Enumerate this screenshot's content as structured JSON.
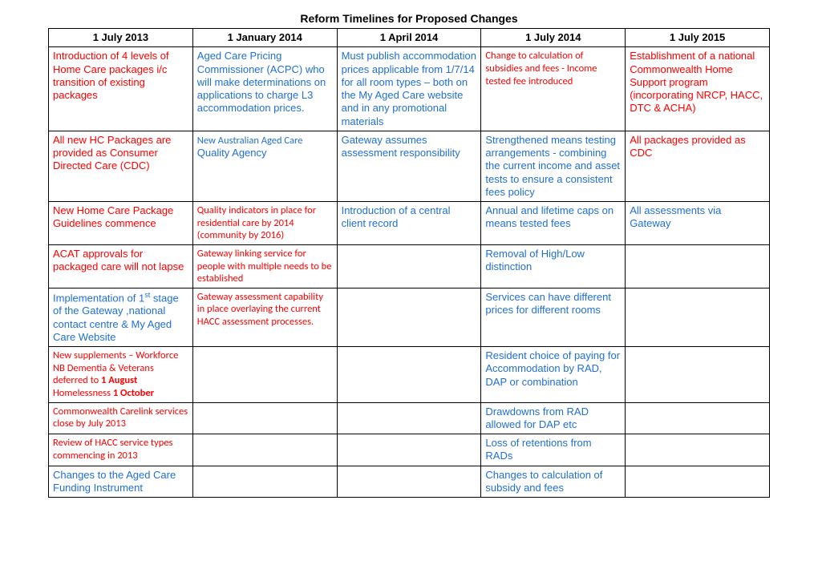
{
  "title": "Reform Timelines for Proposed Changes",
  "headers": [
    "1 July 2013",
    "1 January 2014",
    "1 April 2014",
    "1 July 2014",
    "1 July 2015"
  ],
  "rows": [
    {
      "c0": {
        "style": "c-red",
        "text": "Introduction of 4 levels of Home Care packages i/c transition of existing packages"
      },
      "c1": {
        "style": "c-blue",
        "text": "Aged Care Pricing Commissioner (ACPC) who will make determinations on applications to charge L3 accommodation prices."
      },
      "c2": {
        "style": "c-blue",
        "text": "Must publish accommodation prices applicable from 1/7/14 for all room types – both on the My Aged Care website and in any promotional materials"
      },
      "c3": {
        "style": "c-redcalibri",
        "text": "Change to calculation of subsidies and fees - Income tested fee introduced"
      },
      "c4": {
        "style": "c-red",
        "text": "Establishment of  a national Commonwealth Home Support program (incorporating NRCP, HACC, DTC & ACHA)"
      }
    },
    {
      "c0": {
        "style": "c-red",
        "text": "All new HC Packages are provided as Consumer Directed Care (CDC)"
      },
      "c1": {
        "style": "",
        "html": "<span class='c-bluecalibri'>New Australian Aged Care</span><br><span class='c-blue'>Quality Agency</span>"
      },
      "c2": {
        "style": "c-blue",
        "text": "Gateway assumes assessment responsibility"
      },
      "c3": {
        "style": "c-blue",
        "text": "Strengthened means testing arrangements - combining the current income and asset tests to ensure a consistent fees policy"
      },
      "c4": {
        "style": "c-red",
        "text": "All packages provided as CDC"
      }
    },
    {
      "c0": {
        "style": "c-red",
        "text": "New Home Care Package Guidelines commence"
      },
      "c1": {
        "style": "c-redcalibri",
        "text": "Quality indicators in place for residential care by 2014 (community by 2016)"
      },
      "c2": {
        "style": "c-blue",
        "text": "Introduction of a central client record"
      },
      "c3": {
        "style": "c-blue",
        "text": "Annual and lifetime caps on means tested fees"
      },
      "c4": {
        "style": "c-blue",
        "text": "All assessments via Gateway"
      }
    },
    {
      "c0": {
        "style": "c-red",
        "text": "ACAT approvals for packaged care will not lapse"
      },
      "c1": {
        "style": "c-redcalibri",
        "text": "Gateway linking service for people with multiple needs to be established"
      },
      "c2": {
        "style": "",
        "text": ""
      },
      "c3": {
        "style": "c-blue",
        "text": "Removal of High/Low distinction"
      },
      "c4": {
        "style": "",
        "text": ""
      }
    },
    {
      "c0": {
        "style": "c-blue",
        "html": "Implementation of 1<sup>st</sup> stage of the Gateway ,national contact centre & My Aged Care Website"
      },
      "c1": {
        "style": "c-redcalibri",
        "text": "Gateway assessment capability in place overlaying the current HACC assessment processes."
      },
      "c2": {
        "style": "",
        "text": ""
      },
      "c3": {
        "style": "c-blue",
        "text": "Services can have different prices for different rooms"
      },
      "c4": {
        "style": "",
        "text": ""
      }
    },
    {
      "c0": {
        "style": "c-redcalibri",
        "html": "New supplements – Workforce<br>NB Dementia & Veterans deferred to <b>1 August</b><br>Homelessness <b>1 October</b>"
      },
      "c1": {
        "style": "",
        "text": ""
      },
      "c2": {
        "style": "",
        "text": ""
      },
      "c3": {
        "style": "c-blue",
        "text": "Resident choice of paying for Accommodation by RAD, DAP or combination"
      },
      "c4": {
        "style": "",
        "text": ""
      }
    },
    {
      "c0": {
        "style": "c-redcalibri",
        "text": "Commonwealth Carelink services close by July 2013"
      },
      "c1": {
        "style": "",
        "text": ""
      },
      "c2": {
        "style": "",
        "text": ""
      },
      "c3": {
        "style": "c-blue",
        "text": "Drawdowns from RAD allowed for DAP etc"
      },
      "c4": {
        "style": "",
        "text": ""
      }
    },
    {
      "c0": {
        "style": "c-redcalibri",
        "text": "Review of HACC service types commencing in 2013"
      },
      "c1": {
        "style": "",
        "text": ""
      },
      "c2": {
        "style": "",
        "text": ""
      },
      "c3": {
        "style": "c-blue",
        "text": "Loss of retentions from RADs"
      },
      "c4": {
        "style": "",
        "text": ""
      }
    },
    {
      "c0": {
        "style": "c-blue",
        "text": "Changes to the  Aged Care Funding Instrument"
      },
      "c1": {
        "style": "",
        "text": ""
      },
      "c2": {
        "style": "",
        "text": ""
      },
      "c3": {
        "style": "c-blue",
        "text": "Changes to calculation of subsidy and fees"
      },
      "c4": {
        "style": "",
        "text": ""
      }
    }
  ]
}
